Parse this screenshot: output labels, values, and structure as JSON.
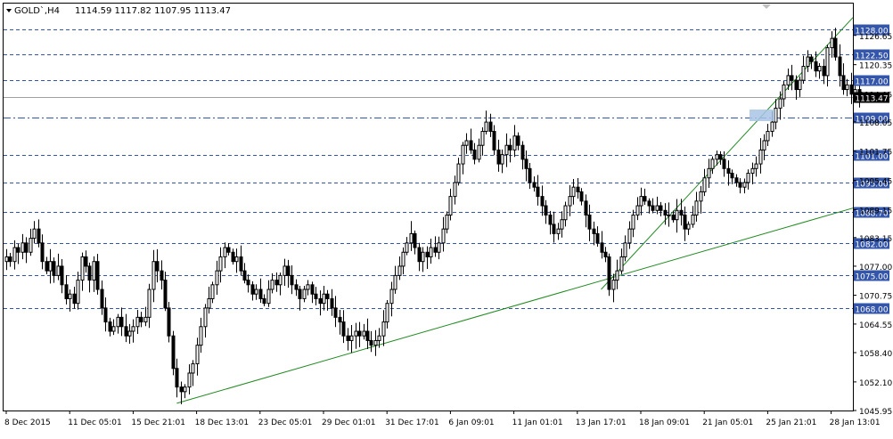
{
  "header": {
    "symbol": "GOLD`,H4",
    "ohlc": "1114.59 1117.82 1107.95 1113.47"
  },
  "colors": {
    "background": "#ffffff",
    "candle": "#000000",
    "level_line": "#3355aa",
    "trendline": "#1f8a1f",
    "current_price_bg": "#000000",
    "current_price_text": "#ffffff"
  },
  "chart_data": {
    "type": "candlestick",
    "ylim": [
      1045.95,
      1133.5
    ],
    "grid": false,
    "yticks": [
      {
        "value": 1126.65,
        "label": "1126.65"
      },
      {
        "value": 1120.35,
        "label": "1120.35"
      },
      {
        "value": 1114.05,
        "label": "1114.05"
      },
      {
        "value": 1108.05,
        "label": "1108.05"
      },
      {
        "value": 1101.75,
        "label": "1101.75"
      },
      {
        "value": 1095.45,
        "label": "1095.45"
      },
      {
        "value": 1089.15,
        "label": "1089.15"
      },
      {
        "value": 1083.15,
        "label": "1083.15"
      },
      {
        "value": 1077.0,
        "label": "1077.00"
      },
      {
        "value": 1070.75,
        "label": "1070.75"
      },
      {
        "value": 1064.55,
        "label": "1064.55"
      },
      {
        "value": 1058.4,
        "label": "1058.40"
      },
      {
        "value": 1052.1,
        "label": "1052.10"
      },
      {
        "value": 1045.95,
        "label": "1045.95"
      }
    ],
    "levels": [
      {
        "value": 1128.0,
        "label": "1128.00",
        "style": "dash"
      },
      {
        "value": 1122.5,
        "label": "1122.50",
        "style": "dash"
      },
      {
        "value": 1117.0,
        "label": "1117.00",
        "style": "dash"
      },
      {
        "value": 1109.0,
        "label": "1109.00",
        "style": "dashdot"
      },
      {
        "value": 1101.0,
        "label": "1101.00",
        "style": "dash"
      },
      {
        "value": 1095.0,
        "label": "1095.00",
        "style": "dash"
      },
      {
        "value": 1088.7,
        "label": "1088.70",
        "style": "dash"
      },
      {
        "value": 1082.0,
        "label": "1082.00",
        "style": "dash"
      },
      {
        "value": 1075.0,
        "label": "1075.00",
        "style": "dash"
      },
      {
        "value": 1068.0,
        "label": "1068.00",
        "style": "dash"
      }
    ],
    "current_price": {
      "value": 1113.47,
      "label": "1113.47"
    },
    "x_labels": [
      {
        "label": "8 Dec 2015",
        "bar": 0
      },
      {
        "label": "11 Dec 05:01",
        "bar": 16
      },
      {
        "label": "15 Dec 21:01",
        "bar": 32
      },
      {
        "label": "18 Dec 13:01",
        "bar": 48
      },
      {
        "label": "23 Dec 05:01",
        "bar": 64
      },
      {
        "label": "29 Dec 01:01",
        "bar": 80
      },
      {
        "label": "31 Dec 17:01",
        "bar": 96
      },
      {
        "label": "6 Jan 09:01",
        "bar": 112
      },
      {
        "label": "11 Jan 01:01",
        "bar": 128
      },
      {
        "label": "13 Jan 17:01",
        "bar": 144
      },
      {
        "label": "18 Jan 09:01",
        "bar": 160
      },
      {
        "label": "21 Jan 05:01",
        "bar": 176
      },
      {
        "label": "25 Jan 21:01",
        "bar": 192
      },
      {
        "label": "28 Jan 13:01",
        "bar": 208
      }
    ],
    "trendlines": [
      {
        "name": "",
        "from": {
          "bar": 43,
          "value": 1047.5
        },
        "to": {
          "bar": 240,
          "value": 1089.5
        }
      },
      {
        "name": "",
        "from": {
          "bar": 150,
          "value": 1072.0
        },
        "to": {
          "bar": 240,
          "value": 1130.5
        }
      }
    ],
    "bar_count": 214,
    "closes": [
      1079,
      1078,
      1081,
      1080,
      1082,
      1080,
      1083,
      1085,
      1082,
      1078,
      1076,
      1078,
      1075,
      1077,
      1073,
      1070,
      1071,
      1069,
      1074,
      1079,
      1077,
      1074,
      1078,
      1072,
      1068,
      1065,
      1063,
      1064,
      1066,
      1064,
      1062,
      1063,
      1064,
      1066,
      1065,
      1066,
      1072,
      1078,
      1076,
      1074,
      1068,
      1062,
      1055,
      1051,
      1050,
      1051,
      1054,
      1056,
      1060,
      1064,
      1068,
      1070,
      1073,
      1076,
      1079,
      1081,
      1080,
      1078,
      1079,
      1076,
      1074,
      1073,
      1071,
      1072,
      1070,
      1069,
      1072,
      1074,
      1073,
      1075,
      1077,
      1075,
      1073,
      1072,
      1070,
      1072,
      1073,
      1071,
      1070,
      1069,
      1071,
      1070,
      1068,
      1066,
      1065,
      1062,
      1061,
      1062,
      1063,
      1062,
      1063,
      1061,
      1060,
      1061,
      1062,
      1065,
      1069,
      1072,
      1075,
      1077,
      1080,
      1082,
      1084,
      1081,
      1078,
      1080,
      1079,
      1081,
      1080,
      1082,
      1085,
      1088,
      1092,
      1095,
      1099,
      1103,
      1104,
      1102,
      1100,
      1103,
      1106,
      1108,
      1106,
      1102,
      1099,
      1101,
      1103,
      1102,
      1105,
      1103,
      1100,
      1098,
      1095,
      1094,
      1092,
      1090,
      1088,
      1086,
      1084,
      1085,
      1087,
      1090,
      1092,
      1094,
      1093,
      1091,
      1088,
      1085,
      1084,
      1082,
      1080,
      1079,
      1072,
      1074,
      1076,
      1079,
      1082,
      1085,
      1088,
      1090,
      1092,
      1091,
      1090,
      1089,
      1090,
      1089,
      1088,
      1088,
      1087,
      1089,
      1088,
      1085,
      1086,
      1088,
      1091,
      1093,
      1096,
      1098,
      1100,
      1101,
      1100,
      1098,
      1097,
      1096,
      1095,
      1094,
      1095,
      1097,
      1098,
      1099,
      1102,
      1104,
      1106,
      1108,
      1111,
      1113,
      1116,
      1118,
      1117,
      1115,
      1117,
      1120,
      1122,
      1121,
      1119,
      1120,
      1118,
      1124,
      1126,
      1122,
      1118,
      1115,
      1116,
      1114,
      1115,
      1113.47
    ],
    "opens_note": ""
  }
}
